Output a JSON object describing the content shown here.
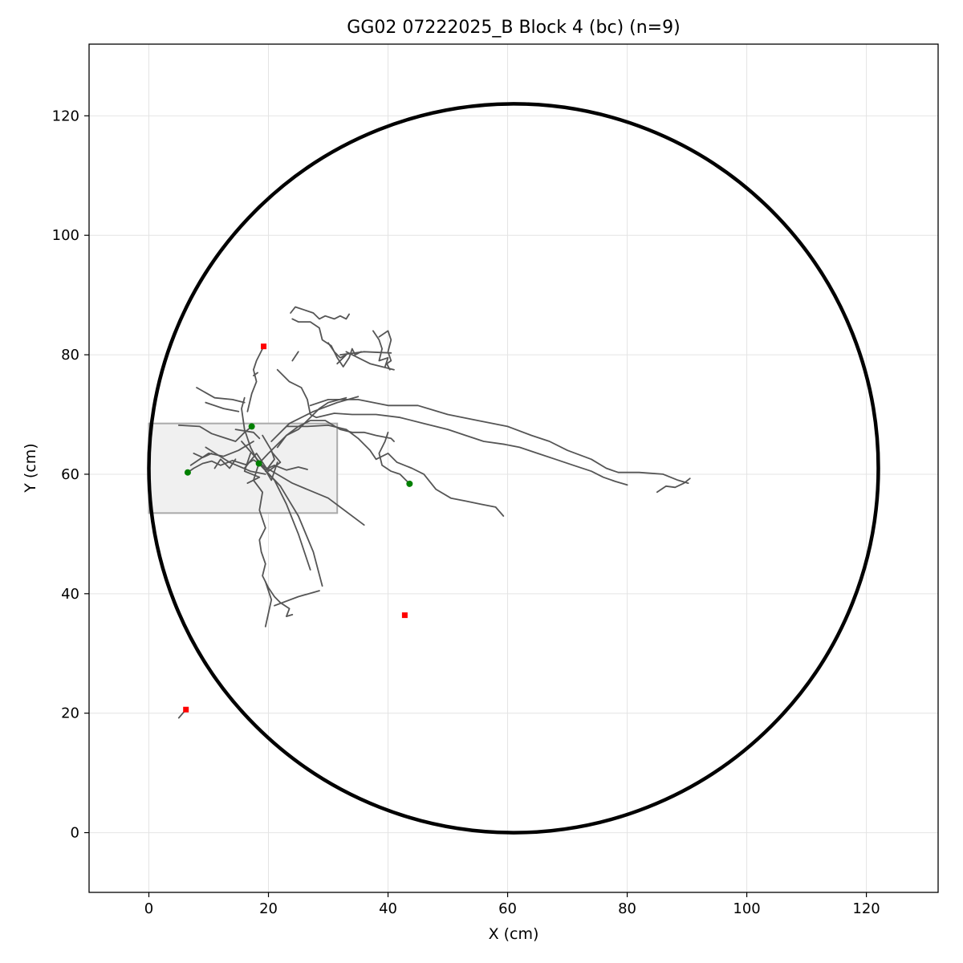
{
  "chart_data": {
    "type": "scatter",
    "title": "GG02 07222025_B Block 4 (bc) (n=9)",
    "xlabel": "X (cm)",
    "ylabel": "Y (cm)",
    "xlim": [
      -10,
      132
    ],
    "ylim": [
      -10,
      132
    ],
    "xticks": [
      0,
      20,
      40,
      60,
      80,
      100,
      120
    ],
    "yticks": [
      0,
      20,
      40,
      60,
      80,
      100,
      120
    ],
    "grid": true,
    "arena_circle": {
      "cx": 61,
      "cy": 61,
      "r": 61,
      "color": "#000000"
    },
    "start_zone": {
      "x0": 0,
      "x1": 31.5,
      "y0": 53.5,
      "y1": 68.5,
      "fill": "#f0f0f0",
      "edge": "#aaaaaa"
    },
    "trajectory_color": "#555555",
    "start_marker_color": "#008000",
    "end_marker_color": "#ff0000",
    "start_points": [
      {
        "x": 17.2,
        "y": 68.0
      },
      {
        "x": 6.5,
        "y": 60.3
      },
      {
        "x": 18.4,
        "y": 61.8
      },
      {
        "x": 43.6,
        "y": 58.4
      }
    ],
    "end_points": [
      {
        "x": 19.2,
        "y": 81.4
      },
      {
        "x": 42.8,
        "y": 36.4
      },
      {
        "x": 6.2,
        "y": 20.6
      }
    ],
    "trajectories": [
      [
        [
          18.4,
          61.8
        ],
        [
          17.5,
          62.4
        ],
        [
          16.2,
          61.6
        ],
        [
          14.0,
          62.3
        ],
        [
          12.0,
          61.5
        ],
        [
          10.5,
          62.2
        ],
        [
          9.0,
          61.8
        ],
        [
          7.5,
          61.0
        ],
        [
          6.5,
          60.3
        ]
      ],
      [
        [
          18.4,
          61.8
        ],
        [
          19.5,
          60.8
        ],
        [
          21.0,
          61.5
        ],
        [
          23.0,
          60.7
        ],
        [
          25.0,
          61.2
        ],
        [
          26.5,
          60.8
        ]
      ],
      [
        [
          18.4,
          61.8
        ],
        [
          17.5,
          59.0
        ],
        [
          19.0,
          57.0
        ],
        [
          18.5,
          54.0
        ],
        [
          19.5,
          51.0
        ],
        [
          18.5,
          49.0
        ],
        [
          18.8,
          47.0
        ],
        [
          19.5,
          45.0
        ],
        [
          19.0,
          43.0
        ],
        [
          20.0,
          41.0
        ],
        [
          21.0,
          39.5
        ],
        [
          22.0,
          38.5
        ],
        [
          23.5,
          37.5
        ],
        [
          23.0,
          36.2
        ],
        [
          24.0,
          36.5
        ]
      ],
      [
        [
          19.5,
          34.5
        ],
        [
          20.5,
          39.0
        ],
        [
          19.5,
          42.0
        ]
      ],
      [
        [
          18.4,
          61.8
        ],
        [
          21.0,
          59.0
        ],
        [
          23.0,
          55.0
        ],
        [
          25.0,
          50.0
        ],
        [
          27.0,
          44.0
        ]
      ],
      [
        [
          18.4,
          61.8
        ],
        [
          22.0,
          58.0
        ],
        [
          25.0,
          53.0
        ],
        [
          27.5,
          47.0
        ],
        [
          29.0,
          41.3
        ]
      ],
      [
        [
          18.4,
          61.8
        ],
        [
          24.0,
          58.5
        ],
        [
          30.0,
          56.0
        ],
        [
          36.0,
          51.5
        ]
      ],
      [
        [
          21.0,
          38.0
        ],
        [
          25.0,
          39.5
        ],
        [
          28.5,
          40.5
        ]
      ],
      [
        [
          17.2,
          68.0
        ],
        [
          16.0,
          67.0
        ],
        [
          15.5,
          66.5
        ],
        [
          14.5,
          65.5
        ],
        [
          12.0,
          66.3
        ],
        [
          10.5,
          66.8
        ],
        [
          8.5,
          68.0
        ],
        [
          5.0,
          68.2
        ]
      ],
      [
        [
          18.4,
          61.8
        ],
        [
          17.0,
          64.5
        ],
        [
          16.0,
          67.5
        ],
        [
          15.5,
          71.0
        ],
        [
          16.0,
          72.8
        ]
      ],
      [
        [
          16.5,
          70.5
        ],
        [
          17.2,
          73.5
        ],
        [
          18.0,
          75.5
        ],
        [
          17.5,
          77.5
        ],
        [
          18.0,
          79.0
        ],
        [
          19.2,
          81.4
        ]
      ],
      [
        [
          8.0,
          74.5
        ],
        [
          11.0,
          72.8
        ],
        [
          14.0,
          72.5
        ],
        [
          16.0,
          72.0
        ]
      ],
      [
        [
          9.5,
          72.0
        ],
        [
          12.5,
          71.0
        ],
        [
          15.0,
          70.5
        ]
      ],
      [
        [
          18.4,
          61.8
        ],
        [
          20.0,
          63.5
        ],
        [
          21.5,
          65.0
        ],
        [
          23.0,
          66.5
        ],
        [
          25.0,
          68.0
        ],
        [
          27.0,
          69.0
        ],
        [
          29.5,
          69.0
        ],
        [
          32.0,
          67.5
        ],
        [
          34.0,
          67.0
        ],
        [
          36.0,
          67.0
        ],
        [
          38.0,
          66.5
        ],
        [
          40.5,
          66.0
        ],
        [
          41.0,
          65.5
        ]
      ],
      [
        [
          23.0,
          68.0
        ],
        [
          26.5,
          68.0
        ],
        [
          30.0,
          68.2
        ],
        [
          33.0,
          67.5
        ],
        [
          35.0,
          66.0
        ],
        [
          37.0,
          64.0
        ],
        [
          38.0,
          62.5
        ],
        [
          40.0,
          63.5
        ],
        [
          41.5,
          62.0
        ],
        [
          44.0,
          61.0
        ],
        [
          46.0,
          60.0
        ],
        [
          48.0,
          57.5
        ],
        [
          50.5,
          56.0
        ],
        [
          53.0,
          55.5
        ],
        [
          55.5,
          55.0
        ],
        [
          58.0,
          54.5
        ],
        [
          59.3,
          53.0
        ]
      ],
      [
        [
          43.6,
          58.4
        ],
        [
          42.0,
          60.0
        ],
        [
          40.5,
          60.5
        ],
        [
          39.0,
          61.5
        ],
        [
          38.5,
          63.5
        ],
        [
          39.5,
          65.5
        ],
        [
          40.0,
          67.0
        ]
      ],
      [
        [
          21.5,
          77.5
        ],
        [
          23.5,
          75.5
        ],
        [
          25.5,
          74.5
        ],
        [
          26.5,
          72.5
        ],
        [
          27.0,
          70.0
        ],
        [
          28.0,
          69.5
        ],
        [
          31.0,
          70.2
        ],
        [
          34.0,
          70.0
        ],
        [
          38.0,
          70.0
        ],
        [
          42.0,
          69.5
        ],
        [
          46.0,
          68.5
        ],
        [
          50.0,
          67.5
        ],
        [
          53.0,
          66.5
        ],
        [
          56.0,
          65.5
        ],
        [
          59.5,
          65.0
        ],
        [
          62.0,
          64.5
        ],
        [
          65.0,
          63.5
        ],
        [
          68.0,
          62.5
        ],
        [
          71.0,
          61.5
        ],
        [
          74.0,
          60.5
        ],
        [
          76.0,
          59.5
        ],
        [
          78.0,
          58.8
        ],
        [
          80.0,
          58.2
        ]
      ],
      [
        [
          27.0,
          71.5
        ],
        [
          30.0,
          72.5
        ],
        [
          35.0,
          72.5
        ],
        [
          40.0,
          71.5
        ],
        [
          45.0,
          71.5
        ],
        [
          50.0,
          70.0
        ],
        [
          55.0,
          69.0
        ],
        [
          60.0,
          68.0
        ],
        [
          64.0,
          66.5
        ],
        [
          67.0,
          65.5
        ],
        [
          70.0,
          64.0
        ],
        [
          74.0,
          62.5
        ],
        [
          76.5,
          61.0
        ],
        [
          78.5,
          60.3
        ],
        [
          82.0,
          60.3
        ],
        [
          86.0,
          60.0
        ],
        [
          88.5,
          59.0
        ],
        [
          90.2,
          58.5
        ]
      ],
      [
        [
          85.0,
          57.0
        ],
        [
          86.5,
          58.0
        ],
        [
          88.0,
          57.8
        ],
        [
          89.5,
          58.5
        ],
        [
          90.5,
          59.3
        ]
      ],
      [
        [
          21.5,
          64.5
        ],
        [
          23.0,
          66.5
        ],
        [
          25.0,
          67.5
        ],
        [
          27.0,
          69.5
        ],
        [
          28.5,
          71.0
        ],
        [
          30.0,
          72.0
        ],
        [
          33.0,
          72.8
        ]
      ],
      [
        [
          20.5,
          65.5
        ],
        [
          23.5,
          68.5
        ],
        [
          27.5,
          70.5
        ],
        [
          31.5,
          72.0
        ],
        [
          35.0,
          73.0
        ]
      ],
      [
        [
          24.0,
          86.0
        ],
        [
          25.0,
          85.5
        ],
        [
          27.0,
          85.5
        ],
        [
          28.5,
          84.5
        ],
        [
          29.0,
          82.5
        ],
        [
          30.5,
          81.5
        ],
        [
          31.5,
          79.5
        ],
        [
          32.5,
          78.0
        ],
        [
          33.5,
          79.5
        ],
        [
          34.0,
          81.0
        ],
        [
          34.5,
          80.0
        ],
        [
          35.5,
          80.5
        ]
      ],
      [
        [
          23.7,
          87.0
        ],
        [
          24.5,
          88.0
        ],
        [
          26.0,
          87.5
        ],
        [
          27.5,
          87.0
        ],
        [
          28.5,
          86.0
        ],
        [
          29.5,
          86.5
        ],
        [
          31.0,
          86.0
        ],
        [
          32.0,
          86.5
        ],
        [
          33.0,
          86.0
        ],
        [
          33.5,
          86.8
        ]
      ],
      [
        [
          32.0,
          80.0
        ],
        [
          36.0,
          80.5
        ],
        [
          40.5,
          80.3
        ]
      ],
      [
        [
          38.5,
          83.0
        ],
        [
          40.0,
          84.0
        ],
        [
          40.5,
          82.5
        ],
        [
          40.0,
          80.5
        ],
        [
          40.5,
          79.0
        ],
        [
          39.8,
          78.5
        ],
        [
          40.3,
          77.5
        ]
      ],
      [
        [
          33.0,
          80.5
        ],
        [
          37.0,
          78.5
        ],
        [
          41.0,
          77.5
        ]
      ],
      [
        [
          30.0,
          82.0
        ],
        [
          31.0,
          80.5
        ],
        [
          32.0,
          79.5
        ],
        [
          33.0,
          80.0
        ],
        [
          31.5,
          78.5
        ]
      ],
      [
        [
          37.5,
          84.0
        ],
        [
          38.5,
          82.5
        ],
        [
          39.0,
          81.0
        ],
        [
          38.5,
          79.0
        ],
        [
          40.0,
          79.5
        ],
        [
          39.5,
          78.0
        ]
      ],
      [
        [
          24.0,
          79.0
        ],
        [
          25.0,
          80.5
        ]
      ],
      [
        [
          17.5,
          76.5
        ],
        [
          18.2,
          77.0
        ]
      ],
      [
        [
          17.5,
          65.5
        ],
        [
          15.0,
          64.0
        ],
        [
          12.5,
          63.0
        ],
        [
          10.0,
          63.5
        ],
        [
          8.5,
          62.5
        ],
        [
          7.0,
          61.5
        ]
      ],
      [
        [
          9.5,
          64.5
        ],
        [
          13.5,
          62.0
        ],
        [
          17.0,
          60.5
        ],
        [
          19.5,
          60.0
        ]
      ],
      [
        [
          17.0,
          63.5
        ],
        [
          16.0,
          60.5
        ],
        [
          18.5,
          59.5
        ],
        [
          16.5,
          58.5
        ]
      ],
      [
        [
          15.5,
          65.5
        ],
        [
          19.0,
          61.5
        ],
        [
          20.5,
          59.0
        ],
        [
          21.5,
          62.0
        ]
      ],
      [
        [
          19.0,
          66.5
        ],
        [
          20.5,
          64.0
        ],
        [
          21.0,
          62.5
        ],
        [
          19.5,
          60.5
        ]
      ],
      [
        [
          16.0,
          61.0
        ],
        [
          18.0,
          63.5
        ],
        [
          20.0,
          60.5
        ],
        [
          22.0,
          62.0
        ],
        [
          20.5,
          63.8
        ]
      ],
      [
        [
          11.0,
          61.0
        ],
        [
          12.0,
          62.5
        ],
        [
          13.5,
          61.0
        ],
        [
          14.5,
          62.5
        ]
      ],
      [
        [
          7.5,
          63.5
        ],
        [
          9.0,
          62.8
        ],
        [
          10.5,
          63.5
        ]
      ],
      [
        [
          14.5,
          67.5
        ],
        [
          17.5,
          67.0
        ],
        [
          18.5,
          66.0
        ]
      ],
      [
        [
          5.0,
          19.2
        ],
        [
          6.2,
          20.6
        ]
      ]
    ]
  }
}
